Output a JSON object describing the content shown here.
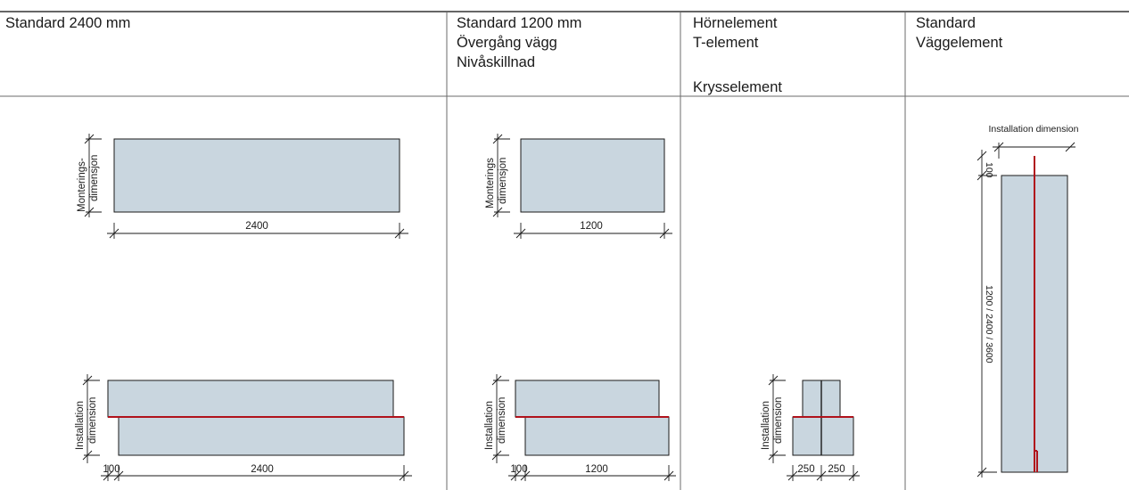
{
  "colors": {
    "panel": "#c9d6df",
    "line": "#1a1a1a",
    "accent": "#b0121b",
    "grid": "#6b6b6b"
  },
  "columns": [
    {
      "header": [
        "Standard 2400 mm"
      ]
    },
    {
      "header": [
        "Standard 1200 mm",
        "Övergång vägg",
        "Nivåskillnad"
      ]
    },
    {
      "header": [
        "Hörnelement",
        "T-element",
        "",
        "Krysselement"
      ]
    },
    {
      "header": [
        "Standard",
        "Väggelement"
      ]
    }
  ],
  "labels": {
    "montering_a": "Monterings-",
    "montering_a2": "dimensjon",
    "montering_b": "Monterings",
    "montering_b2": "dimensjon",
    "install_1": "Installation",
    "install_2": "dimension",
    "installation_dimension": "Installation dimension"
  },
  "dims": {
    "d2400": "2400",
    "d1200": "1200",
    "d100": "100",
    "d250": "250",
    "wall_height": "1200 / 2400 / 3600"
  }
}
